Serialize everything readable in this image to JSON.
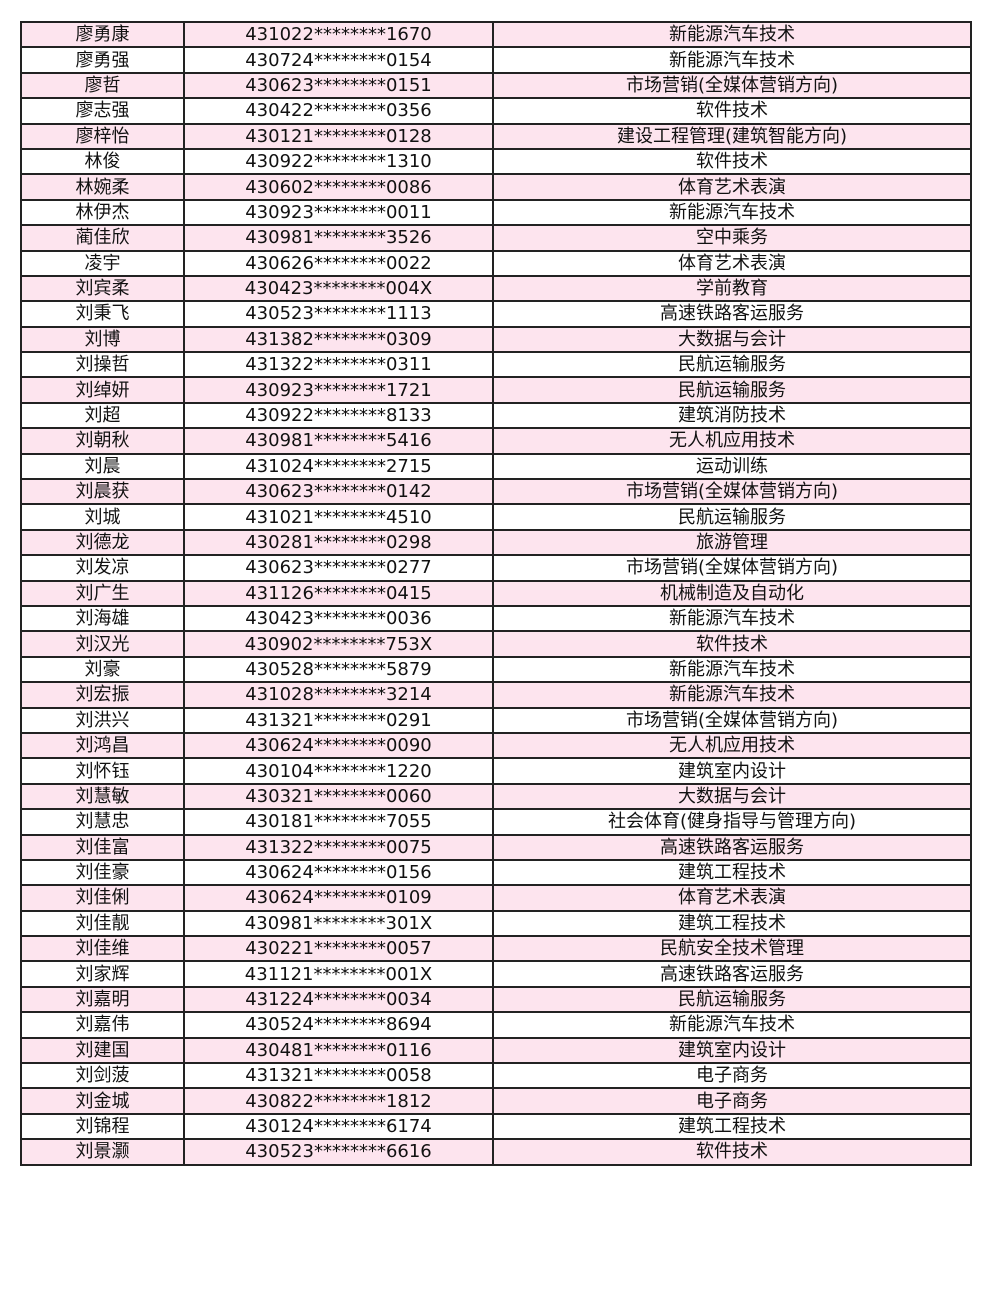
{
  "colors": {
    "row_alt": "#fde4ee",
    "row_plain": "#ffffff",
    "border": "#222222"
  },
  "rows": [
    [
      "廖勇康",
      "431022********1670",
      "新能源汽车技术"
    ],
    [
      "廖勇强",
      "430724********0154",
      "新能源汽车技术"
    ],
    [
      "廖哲",
      "430623********0151",
      "市场营销(全媒体营销方向)"
    ],
    [
      "廖志强",
      "430422********0356",
      "软件技术"
    ],
    [
      "廖梓怡",
      "430121********0128",
      "建设工程管理(建筑智能方向)"
    ],
    [
      "林俊",
      "430922********1310",
      "软件技术"
    ],
    [
      "林婉柔",
      "430602********0086",
      "体育艺术表演"
    ],
    [
      "林伊杰",
      "430923********0011",
      "新能源汽车技术"
    ],
    [
      "蔺佳欣",
      "430981********3526",
      "空中乘务"
    ],
    [
      "凌宇",
      "430626********0022",
      "体育艺术表演"
    ],
    [
      "刘宾柔",
      "430423********004X",
      "学前教育"
    ],
    [
      "刘秉飞",
      "430523********1113",
      "高速铁路客运服务"
    ],
    [
      "刘博",
      "431382********0309",
      "大数据与会计"
    ],
    [
      "刘操哲",
      "431322********0311",
      "民航运输服务"
    ],
    [
      "刘绰妍",
      "430923********1721",
      "民航运输服务"
    ],
    [
      "刘超",
      "430922********8133",
      "建筑消防技术"
    ],
    [
      "刘朝秋",
      "430981********5416",
      "无人机应用技术"
    ],
    [
      "刘晨",
      "431024********2715",
      "运动训练"
    ],
    [
      "刘晨获",
      "430623********0142",
      "市场营销(全媒体营销方向)"
    ],
    [
      "刘城",
      "431021********4510",
      "民航运输服务"
    ],
    [
      "刘德龙",
      "430281********0298",
      "旅游管理"
    ],
    [
      "刘发凉",
      "430623********0277",
      "市场营销(全媒体营销方向)"
    ],
    [
      "刘广生",
      "431126********0415",
      "机械制造及自动化"
    ],
    [
      "刘海雄",
      "430423********0036",
      "新能源汽车技术"
    ],
    [
      "刘汉光",
      "430902********753X",
      "软件技术"
    ],
    [
      "刘豪",
      "430528********5879",
      "新能源汽车技术"
    ],
    [
      "刘宏振",
      "431028********3214",
      "新能源汽车技术"
    ],
    [
      "刘洪兴",
      "431321********0291",
      "市场营销(全媒体营销方向)"
    ],
    [
      "刘鸿昌",
      "430624********0090",
      "无人机应用技术"
    ],
    [
      "刘怀钰",
      "430104********1220",
      "建筑室内设计"
    ],
    [
      "刘慧敏",
      "430321********0060",
      "大数据与会计"
    ],
    [
      "刘慧忠",
      "430181********7055",
      "社会体育(健身指导与管理方向)"
    ],
    [
      "刘佳富",
      "431322********0075",
      "高速铁路客运服务"
    ],
    [
      "刘佳豪",
      "430624********0156",
      "建筑工程技术"
    ],
    [
      "刘佳俐",
      "430624********0109",
      "体育艺术表演"
    ],
    [
      "刘佳靓",
      "430981********301X",
      "建筑工程技术"
    ],
    [
      "刘佳维",
      "430221********0057",
      "民航安全技术管理"
    ],
    [
      "刘家辉",
      "431121********001X",
      "高速铁路客运服务"
    ],
    [
      "刘嘉明",
      "431224********0034",
      "民航运输服务"
    ],
    [
      "刘嘉伟",
      "430524********8694",
      "新能源汽车技术"
    ],
    [
      "刘建国",
      "430481********0116",
      "建筑室内设计"
    ],
    [
      "刘剑菠",
      "431321********0058",
      "电子商务"
    ],
    [
      "刘金城",
      "430822********1812",
      "电子商务"
    ],
    [
      "刘锦程",
      "430124********6174",
      "建筑工程技术"
    ],
    [
      "刘景灏",
      "430523********6616",
      "软件技术"
    ]
  ]
}
